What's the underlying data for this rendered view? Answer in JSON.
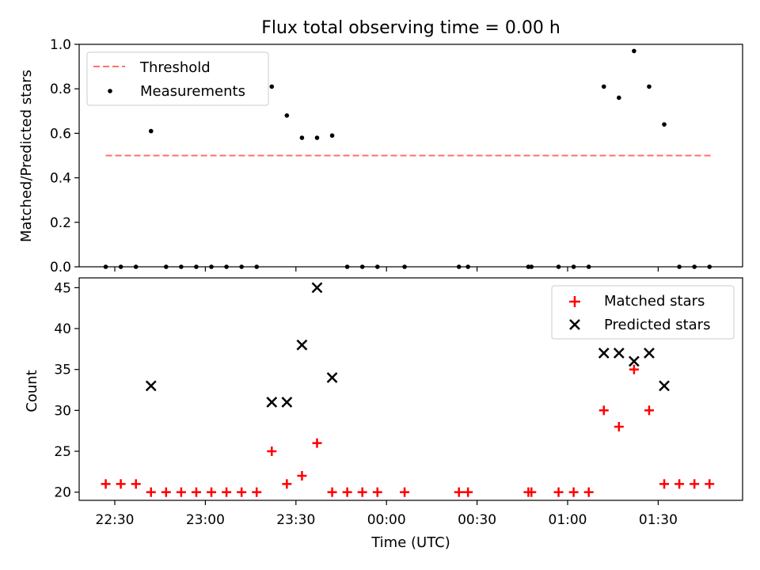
{
  "title": "Flux total observing time = 0.00 h",
  "colors": {
    "threshold": "#ff6f6f",
    "measurements": "#000000",
    "matched": "#ff0000",
    "predicted": "#000000"
  },
  "chart_data": [
    {
      "type": "scatter",
      "panel": "top",
      "ylabel": "Matched/Predicted stars",
      "xlabel": "",
      "ylim": [
        0,
        1.0
      ],
      "yticks": [
        "0.0",
        "0.2",
        "0.4",
        "0.6",
        "0.8",
        "1.0"
      ],
      "legend": {
        "position": "top-left",
        "entries": [
          "Threshold",
          "Measurements"
        ]
      },
      "threshold": {
        "name": "Threshold",
        "y": 0.5,
        "x_start": "22:27",
        "x_end": "01:48"
      },
      "series": [
        {
          "name": "Measurements",
          "x": [
            "22:27",
            "22:32",
            "22:37",
            "22:42",
            "22:47",
            "22:52",
            "22:57",
            "23:02",
            "23:07",
            "23:12",
            "23:17",
            "23:22",
            "23:27",
            "23:32",
            "23:37",
            "23:42",
            "23:47",
            "23:52",
            "23:57",
            "00:06",
            "00:24",
            "00:27",
            "00:47",
            "00:48",
            "00:57",
            "01:02",
            "01:07",
            "01:12",
            "01:17",
            "01:22",
            "01:27",
            "01:32",
            "01:37",
            "01:42",
            "01:47"
          ],
          "y": [
            0,
            0,
            0,
            0.61,
            0,
            0,
            0,
            0,
            0,
            0,
            0,
            0.81,
            0.68,
            0.58,
            0.58,
            0.59,
            0,
            0,
            0,
            0,
            0,
            0,
            0,
            0,
            0,
            0,
            0,
            0.81,
            0.76,
            0.97,
            0.81,
            0.64,
            0,
            0,
            0
          ]
        }
      ]
    },
    {
      "type": "scatter",
      "panel": "bottom",
      "ylabel": "Count",
      "xlabel": "Time (UTC)",
      "ylim": [
        19,
        46.2
      ],
      "yticks": [
        "20",
        "25",
        "30",
        "35",
        "40",
        "45"
      ],
      "xticks": [
        "22:30",
        "23:00",
        "23:30",
        "00:00",
        "00:30",
        "01:00",
        "01:30"
      ],
      "legend": {
        "position": "top-right",
        "entries": [
          "Matched stars",
          "Predicted stars"
        ]
      },
      "series": [
        {
          "name": "Matched stars",
          "x": [
            "22:27",
            "22:32",
            "22:37",
            "22:42",
            "22:47",
            "22:52",
            "22:57",
            "23:02",
            "23:07",
            "23:12",
            "23:17",
            "23:22",
            "23:27",
            "23:32",
            "23:37",
            "23:42",
            "23:47",
            "23:52",
            "23:57",
            "00:06",
            "00:24",
            "00:27",
            "00:47",
            "00:48",
            "00:57",
            "01:02",
            "01:07",
            "01:12",
            "01:17",
            "01:22",
            "01:27",
            "01:32",
            "01:37",
            "01:42",
            "01:47"
          ],
          "y": [
            21,
            21,
            21,
            20,
            20,
            20,
            20,
            20,
            20,
            20,
            20,
            25,
            21,
            22,
            26,
            20,
            20,
            20,
            20,
            20,
            20,
            20,
            20,
            20,
            20,
            20,
            20,
            30,
            28,
            35,
            30,
            21,
            21,
            21,
            21
          ]
        },
        {
          "name": "Predicted stars",
          "x": [
            "22:42",
            "23:22",
            "23:27",
            "23:32",
            "23:37",
            "23:42",
            "01:12",
            "01:17",
            "01:22",
            "01:27",
            "01:32"
          ],
          "y": [
            33,
            31,
            31,
            38,
            45,
            34,
            37,
            37,
            36,
            37,
            33
          ]
        }
      ]
    }
  ]
}
